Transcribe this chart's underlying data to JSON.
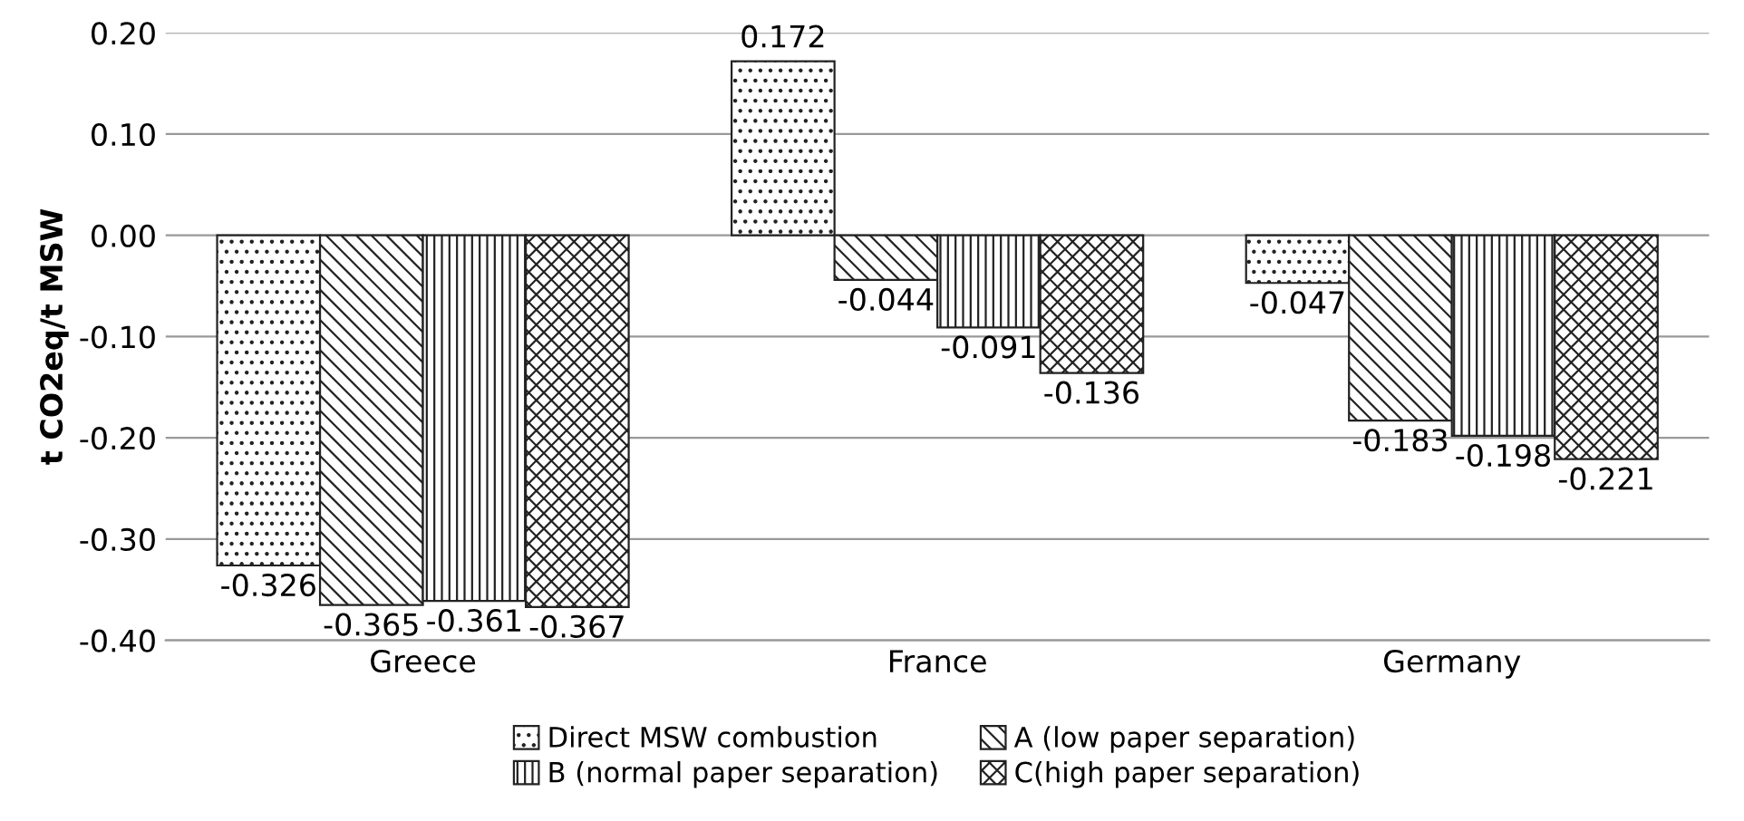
{
  "chart_data": {
    "type": "bar",
    "ylabel": "t CO2eq/t MSW",
    "categories": [
      "Greece",
      "France",
      "Germany"
    ],
    "series": [
      {
        "name": "Direct MSW combustion",
        "color": "#222222",
        "values": [
          -0.326,
          0.172,
          -0.047
        ]
      },
      {
        "name": "A (low paper separation)",
        "color": "#222222",
        "values": [
          -0.365,
          -0.044,
          -0.183
        ]
      },
      {
        "name": "B (normal paper separation)",
        "color": "#222222",
        "values": [
          -0.361,
          -0.091,
          -0.198
        ]
      },
      {
        "name": "C(high paper separation)",
        "color": "#222222",
        "values": [
          -0.367,
          -0.136,
          -0.221
        ]
      }
    ],
    "ylim": [
      -0.4,
      0.2
    ],
    "yticks": [
      {
        "value": -0.4,
        "label": "-0.40"
      },
      {
        "value": -0.3,
        "label": "-0.30"
      },
      {
        "value": -0.2,
        "label": "-0.20"
      },
      {
        "value": -0.1,
        "label": "-0.10"
      },
      {
        "value": 0,
        "label": "0.00"
      },
      {
        "value": 0.1,
        "label": "0.10"
      },
      {
        "value": 0.2,
        "label": "0.20"
      }
    ],
    "grid": "y",
    "legend": "bottom",
    "data_labels": true
  }
}
